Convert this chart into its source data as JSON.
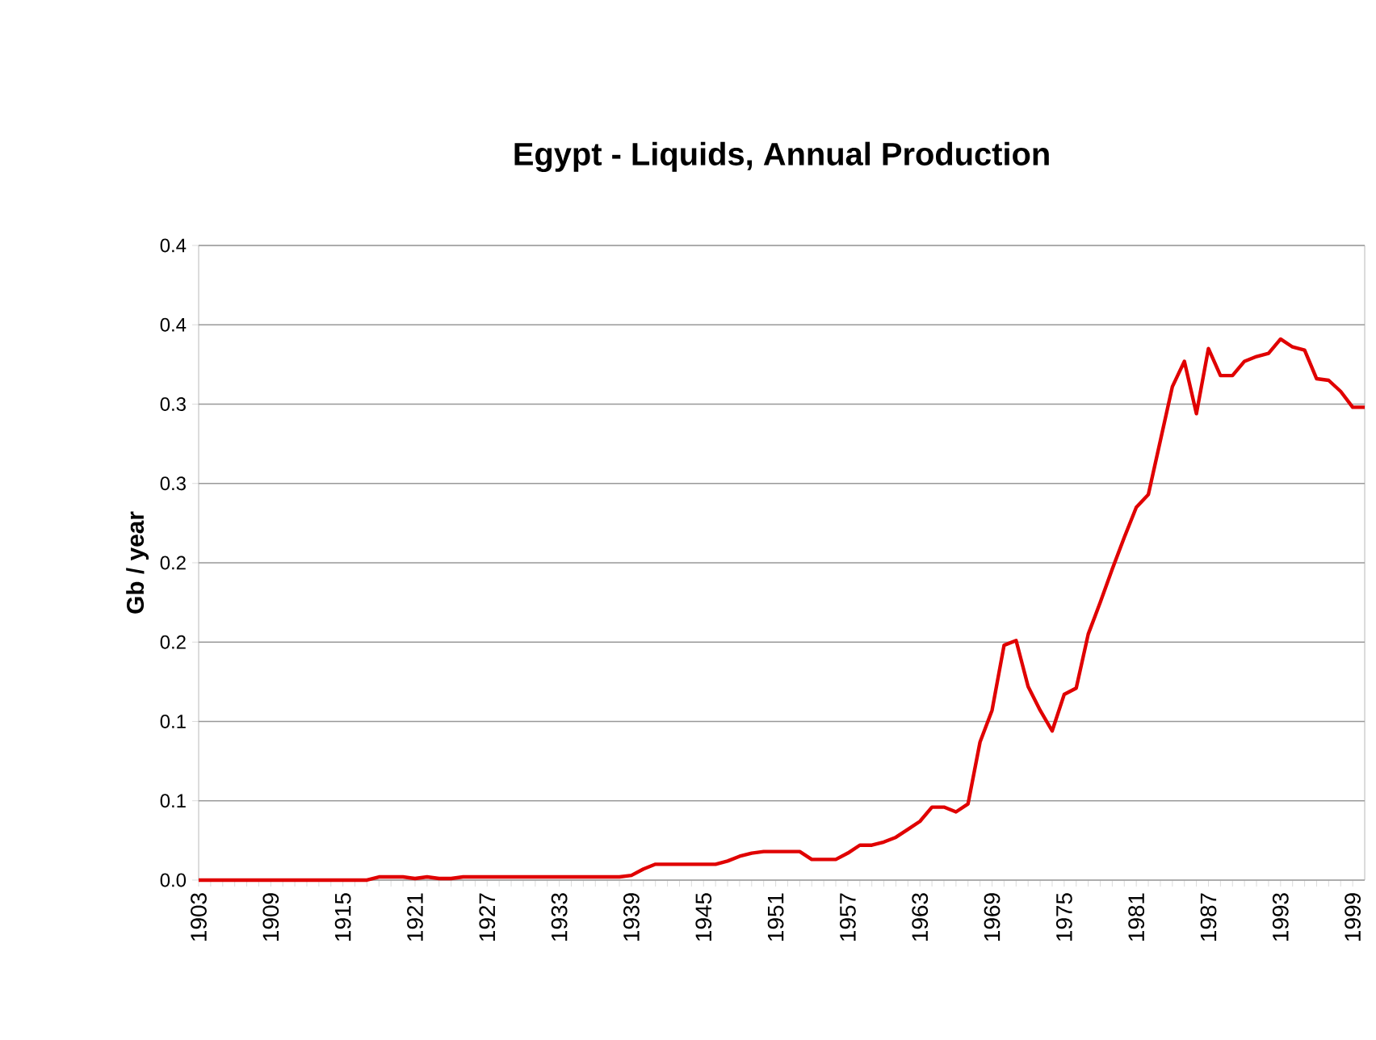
{
  "chart_data": {
    "type": "line",
    "title": "Egypt  -  Liquids, Annual Production",
    "ylabel": "Gb / year",
    "x": [
      1903,
      1904,
      1905,
      1906,
      1907,
      1908,
      1909,
      1910,
      1911,
      1912,
      1913,
      1914,
      1915,
      1916,
      1917,
      1918,
      1919,
      1920,
      1921,
      1922,
      1923,
      1924,
      1925,
      1926,
      1927,
      1928,
      1929,
      1930,
      1931,
      1932,
      1933,
      1934,
      1935,
      1936,
      1937,
      1938,
      1939,
      1940,
      1941,
      1942,
      1943,
      1944,
      1945,
      1946,
      1947,
      1948,
      1949,
      1950,
      1951,
      1952,
      1953,
      1954,
      1955,
      1956,
      1957,
      1958,
      1959,
      1960,
      1961,
      1962,
      1963,
      1964,
      1965,
      1966,
      1967,
      1968,
      1969,
      1970,
      1971,
      1972,
      1973,
      1974,
      1975,
      1976,
      1977,
      1978,
      1979,
      1980,
      1981,
      1982,
      1983,
      1984,
      1985,
      1986,
      1987,
      1988,
      1989,
      1990,
      1991,
      1992,
      1993,
      1994,
      1995,
      1996,
      1997,
      1998,
      1999,
      2000
    ],
    "series": [
      {
        "color": "#e00000",
        "values": [
          0,
          0,
          0,
          0,
          0,
          0,
          0,
          0,
          0,
          0,
          0,
          0,
          0,
          0,
          0,
          0.002,
          0.002,
          0.002,
          0.001,
          0.002,
          0.001,
          0.001,
          0.002,
          0.002,
          0.002,
          0.002,
          0.002,
          0.002,
          0.002,
          0.002,
          0.002,
          0.002,
          0.002,
          0.002,
          0.002,
          0.002,
          0.003,
          0.007,
          0.01,
          0.01,
          0.01,
          0.01,
          0.01,
          0.01,
          0.012,
          0.015,
          0.017,
          0.018,
          0.018,
          0.018,
          0.018,
          0.013,
          0.013,
          0.013,
          0.017,
          0.022,
          0.022,
          0.024,
          0.027,
          0.032,
          0.037,
          0.046,
          0.046,
          0.043,
          0.048,
          0.087,
          0.107,
          0.148,
          0.151,
          0.122,
          0.107,
          0.094,
          0.117,
          0.121,
          0.155,
          0.175,
          0.196,
          0.216,
          0.235,
          0.243,
          0.277,
          0.311,
          0.327,
          0.294,
          0.335,
          0.318,
          0.318,
          0.327,
          0.33,
          0.332,
          0.341,
          0.336,
          0.334,
          0.316,
          0.315,
          0.308,
          0.298,
          0.298
        ]
      }
    ],
    "xlim": [
      1903,
      2000
    ],
    "xticks": [
      1903,
      1909,
      1915,
      1921,
      1927,
      1933,
      1939,
      1945,
      1951,
      1957,
      1963,
      1969,
      1975,
      1981,
      1987,
      1993,
      1999
    ],
    "ylim": [
      0,
      0.4
    ],
    "yticks": [
      {
        "value": 0,
        "label": "0.0"
      },
      {
        "value": 0.05,
        "label": "0.1"
      },
      {
        "value": 0.1,
        "label": "0.1"
      },
      {
        "value": 0.15,
        "label": "0.2"
      },
      {
        "value": 0.2,
        "label": "0.2"
      },
      {
        "value": 0.25,
        "label": "0.3"
      },
      {
        "value": 0.3,
        "label": "0.3"
      },
      {
        "value": 0.35,
        "label": "0.4"
      },
      {
        "value": 0.4,
        "label": "0.4"
      }
    ],
    "grid": "y",
    "line_style": "solid"
  }
}
